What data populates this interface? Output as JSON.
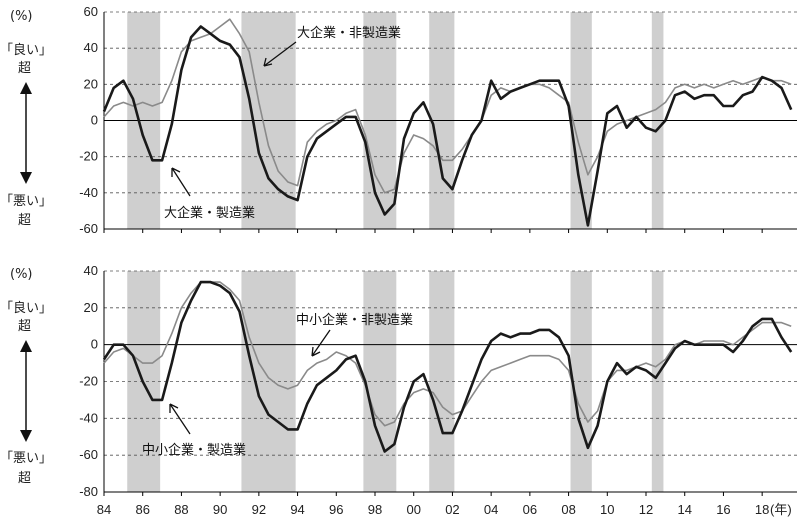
{
  "left_labels": {
    "unit": "(%)",
    "good": "「良い」",
    "good_suffix": "超",
    "bad": "「悪い」",
    "bad_suffix": "超"
  },
  "chart_data": [
    {
      "type": "line",
      "name": "large",
      "ylim": [
        -60,
        60
      ],
      "yticks": [
        60,
        40,
        20,
        0,
        -20,
        -40,
        -60
      ],
      "xlim": [
        1984,
        2019.8
      ],
      "xticks": [
        1984,
        1986,
        1988,
        1990,
        1992,
        1994,
        1996,
        1998,
        2000,
        2002,
        2004,
        2006,
        2008,
        2010,
        2012,
        2014,
        2016,
        2018
      ],
      "xtick_labels": [
        "84",
        "86",
        "88",
        "90",
        "92",
        "94",
        "96",
        "98",
        "00",
        "02",
        "04",
        "06",
        "08",
        "10",
        "12",
        "14",
        "16",
        "18"
      ],
      "x_unit": "(年)",
      "recession_bands": [
        [
          1985.2,
          1986.9
        ],
        [
          1991.1,
          1993.9
        ],
        [
          1997.4,
          1999.1
        ],
        [
          2000.8,
          2002.1
        ],
        [
          2008.1,
          2009.2
        ],
        [
          2012.3,
          2012.9
        ]
      ],
      "series": [
        {
          "name": "大企業・製造業",
          "style": "mfg",
          "x": [
            1984,
            1984.5,
            1985,
            1985.5,
            1986,
            1986.5,
            1987,
            1987.5,
            1988,
            1988.5,
            1989,
            1989.5,
            1990,
            1990.5,
            1991,
            1991.5,
            1992,
            1992.5,
            1993,
            1993.5,
            1994,
            1994.5,
            1995,
            1995.5,
            1996,
            1996.5,
            1997,
            1997.5,
            1998,
            1998.5,
            1999,
            1999.5,
            2000,
            2000.5,
            2001,
            2001.5,
            2002,
            2002.5,
            2003,
            2003.5,
            2004,
            2004.5,
            2005,
            2005.5,
            2006,
            2006.5,
            2007,
            2007.5,
            2008,
            2008.5,
            2009,
            2009.5,
            2010,
            2010.5,
            2011,
            2011.5,
            2012,
            2012.5,
            2013,
            2013.5,
            2014,
            2014.5,
            2015,
            2015.5,
            2016,
            2016.5,
            2017,
            2017.5,
            2018,
            2018.5,
            2019,
            2019.5
          ],
          "y": [
            5,
            18,
            22,
            12,
            -8,
            -22,
            -22,
            -2,
            28,
            46,
            52,
            48,
            44,
            42,
            35,
            12,
            -18,
            -32,
            -38,
            -42,
            -44,
            -20,
            -10,
            -6,
            -2,
            2,
            2,
            -12,
            -40,
            -52,
            -46,
            -10,
            4,
            10,
            -2,
            -32,
            -38,
            -22,
            -8,
            0,
            22,
            12,
            16,
            18,
            20,
            22,
            22,
            22,
            8,
            -30,
            -58,
            -28,
            4,
            8,
            -4,
            2,
            -4,
            -6,
            0,
            14,
            16,
            12,
            14,
            14,
            8,
            8,
            14,
            16,
            24,
            22,
            18,
            6
          ]
        },
        {
          "name": "大企業・非製造業",
          "style": "non",
          "x": [
            1984,
            1984.5,
            1985,
            1985.5,
            1986,
            1986.5,
            1987,
            1987.5,
            1988,
            1988.5,
            1989,
            1989.5,
            1990,
            1990.5,
            1991,
            1991.5,
            1992,
            1992.5,
            1993,
            1993.5,
            1994,
            1994.5,
            1995,
            1995.5,
            1996,
            1996.5,
            1997,
            1997.5,
            1998,
            1998.5,
            1999,
            1999.5,
            2000,
            2000.5,
            2001,
            2001.5,
            2002,
            2002.5,
            2003,
            2003.5,
            2004,
            2004.5,
            2005,
            2005.5,
            2006,
            2006.5,
            2007,
            2007.5,
            2008,
            2008.5,
            2009,
            2009.5,
            2010,
            2010.5,
            2011,
            2011.5,
            2012,
            2012.5,
            2013,
            2013.5,
            2014,
            2014.5,
            2015,
            2015.5,
            2016,
            2016.5,
            2017,
            2017.5,
            2018,
            2018.5,
            2019,
            2019.5
          ],
          "y": [
            2,
            8,
            10,
            8,
            10,
            8,
            10,
            22,
            38,
            44,
            46,
            48,
            52,
            56,
            48,
            38,
            10,
            -14,
            -28,
            -34,
            -36,
            -12,
            -6,
            -2,
            0,
            4,
            6,
            -8,
            -30,
            -40,
            -38,
            -18,
            -8,
            -10,
            -14,
            -22,
            -22,
            -16,
            -8,
            0,
            14,
            18,
            16,
            18,
            20,
            20,
            18,
            14,
            10,
            -12,
            -30,
            -20,
            -6,
            -2,
            0,
            2,
            4,
            6,
            10,
            18,
            20,
            18,
            20,
            18,
            20,
            22,
            20,
            22,
            24,
            22,
            22,
            20
          ]
        }
      ]
    },
    {
      "type": "line",
      "name": "small",
      "ylim": [
        -80,
        40
      ],
      "yticks": [
        40,
        20,
        0,
        -20,
        -40,
        -60,
        -80
      ],
      "xlim": [
        1984,
        2019.8
      ],
      "xticks": [
        1984,
        1986,
        1988,
        1990,
        1992,
        1994,
        1996,
        1998,
        2000,
        2002,
        2004,
        2006,
        2008,
        2010,
        2012,
        2014,
        2016,
        2018
      ],
      "xtick_labels": [
        "84",
        "86",
        "88",
        "90",
        "92",
        "94",
        "96",
        "98",
        "00",
        "02",
        "04",
        "06",
        "08",
        "10",
        "12",
        "14",
        "16",
        "18"
      ],
      "x_unit": "(年)",
      "recession_bands": [
        [
          1985.2,
          1986.9
        ],
        [
          1991.1,
          1993.9
        ],
        [
          1997.4,
          1999.1
        ],
        [
          2000.8,
          2002.1
        ],
        [
          2008.1,
          2009.2
        ],
        [
          2012.3,
          2012.9
        ]
      ],
      "series": [
        {
          "name": "中小企業・製造業",
          "style": "mfg",
          "x": [
            1984,
            1984.5,
            1985,
            1985.5,
            1986,
            1986.5,
            1987,
            1987.5,
            1988,
            1988.5,
            1989,
            1989.5,
            1990,
            1990.5,
            1991,
            1991.5,
            1992,
            1992.5,
            1993,
            1993.5,
            1994,
            1994.5,
            1995,
            1995.5,
            1996,
            1996.5,
            1997,
            1997.5,
            1998,
            1998.5,
            1999,
            1999.5,
            2000,
            2000.5,
            2001,
            2001.5,
            2002,
            2002.5,
            2003,
            2003.5,
            2004,
            2004.5,
            2005,
            2005.5,
            2006,
            2006.5,
            2007,
            2007.5,
            2008,
            2008.5,
            2009,
            2009.5,
            2010,
            2010.5,
            2011,
            2011.5,
            2012,
            2012.5,
            2013,
            2013.5,
            2014,
            2014.5,
            2015,
            2015.5,
            2016,
            2016.5,
            2017,
            2017.5,
            2018,
            2018.5,
            2019,
            2019.5
          ],
          "y": [
            -8,
            0,
            0,
            -6,
            -20,
            -30,
            -30,
            -10,
            12,
            24,
            34,
            34,
            32,
            28,
            18,
            -6,
            -28,
            -38,
            -42,
            -46,
            -46,
            -32,
            -22,
            -18,
            -14,
            -8,
            -6,
            -20,
            -44,
            -58,
            -54,
            -34,
            -20,
            -16,
            -30,
            -48,
            -48,
            -36,
            -22,
            -8,
            2,
            6,
            4,
            6,
            6,
            8,
            8,
            4,
            -6,
            -40,
            -56,
            -44,
            -20,
            -10,
            -16,
            -12,
            -14,
            -18,
            -10,
            -2,
            2,
            0,
            0,
            0,
            0,
            -4,
            2,
            10,
            14,
            14,
            4,
            -4
          ]
        },
        {
          "name": "中小企業・非製造業",
          "style": "non",
          "x": [
            1984,
            1984.5,
            1985,
            1985.5,
            1986,
            1986.5,
            1987,
            1987.5,
            1988,
            1988.5,
            1989,
            1989.5,
            1990,
            1990.5,
            1991,
            1991.5,
            1992,
            1992.5,
            1993,
            1993.5,
            1994,
            1994.5,
            1995,
            1995.5,
            1996,
            1996.5,
            1997,
            1997.5,
            1998,
            1998.5,
            1999,
            1999.5,
            2000,
            2000.5,
            2001,
            2001.5,
            2002,
            2002.5,
            2003,
            2003.5,
            2004,
            2004.5,
            2005,
            2005.5,
            2006,
            2006.5,
            2007,
            2007.5,
            2008,
            2008.5,
            2009,
            2009.5,
            2010,
            2010.5,
            2011,
            2011.5,
            2012,
            2012.5,
            2013,
            2013.5,
            2014,
            2014.5,
            2015,
            2015.5,
            2016,
            2016.5,
            2017,
            2017.5,
            2018,
            2018.5,
            2019,
            2019.5
          ],
          "y": [
            -10,
            -4,
            -2,
            -6,
            -10,
            -10,
            -6,
            6,
            20,
            28,
            34,
            34,
            34,
            30,
            24,
            4,
            -10,
            -18,
            -22,
            -24,
            -22,
            -14,
            -10,
            -8,
            -4,
            -6,
            -10,
            -22,
            -38,
            -44,
            -42,
            -32,
            -26,
            -24,
            -26,
            -34,
            -38,
            -36,
            -28,
            -20,
            -14,
            -12,
            -10,
            -8,
            -6,
            -6,
            -6,
            -8,
            -14,
            -32,
            -42,
            -36,
            -20,
            -14,
            -14,
            -12,
            -10,
            -12,
            -8,
            0,
            2,
            0,
            2,
            2,
            2,
            0,
            4,
            8,
            12,
            12,
            12,
            10
          ]
        }
      ]
    }
  ],
  "annotations": {
    "large_mfg": "大企業・製造業",
    "large_non": "大企業・非製造業",
    "small_mfg": "中小企業・製造業",
    "small_non": "中小企業・非製造業"
  }
}
